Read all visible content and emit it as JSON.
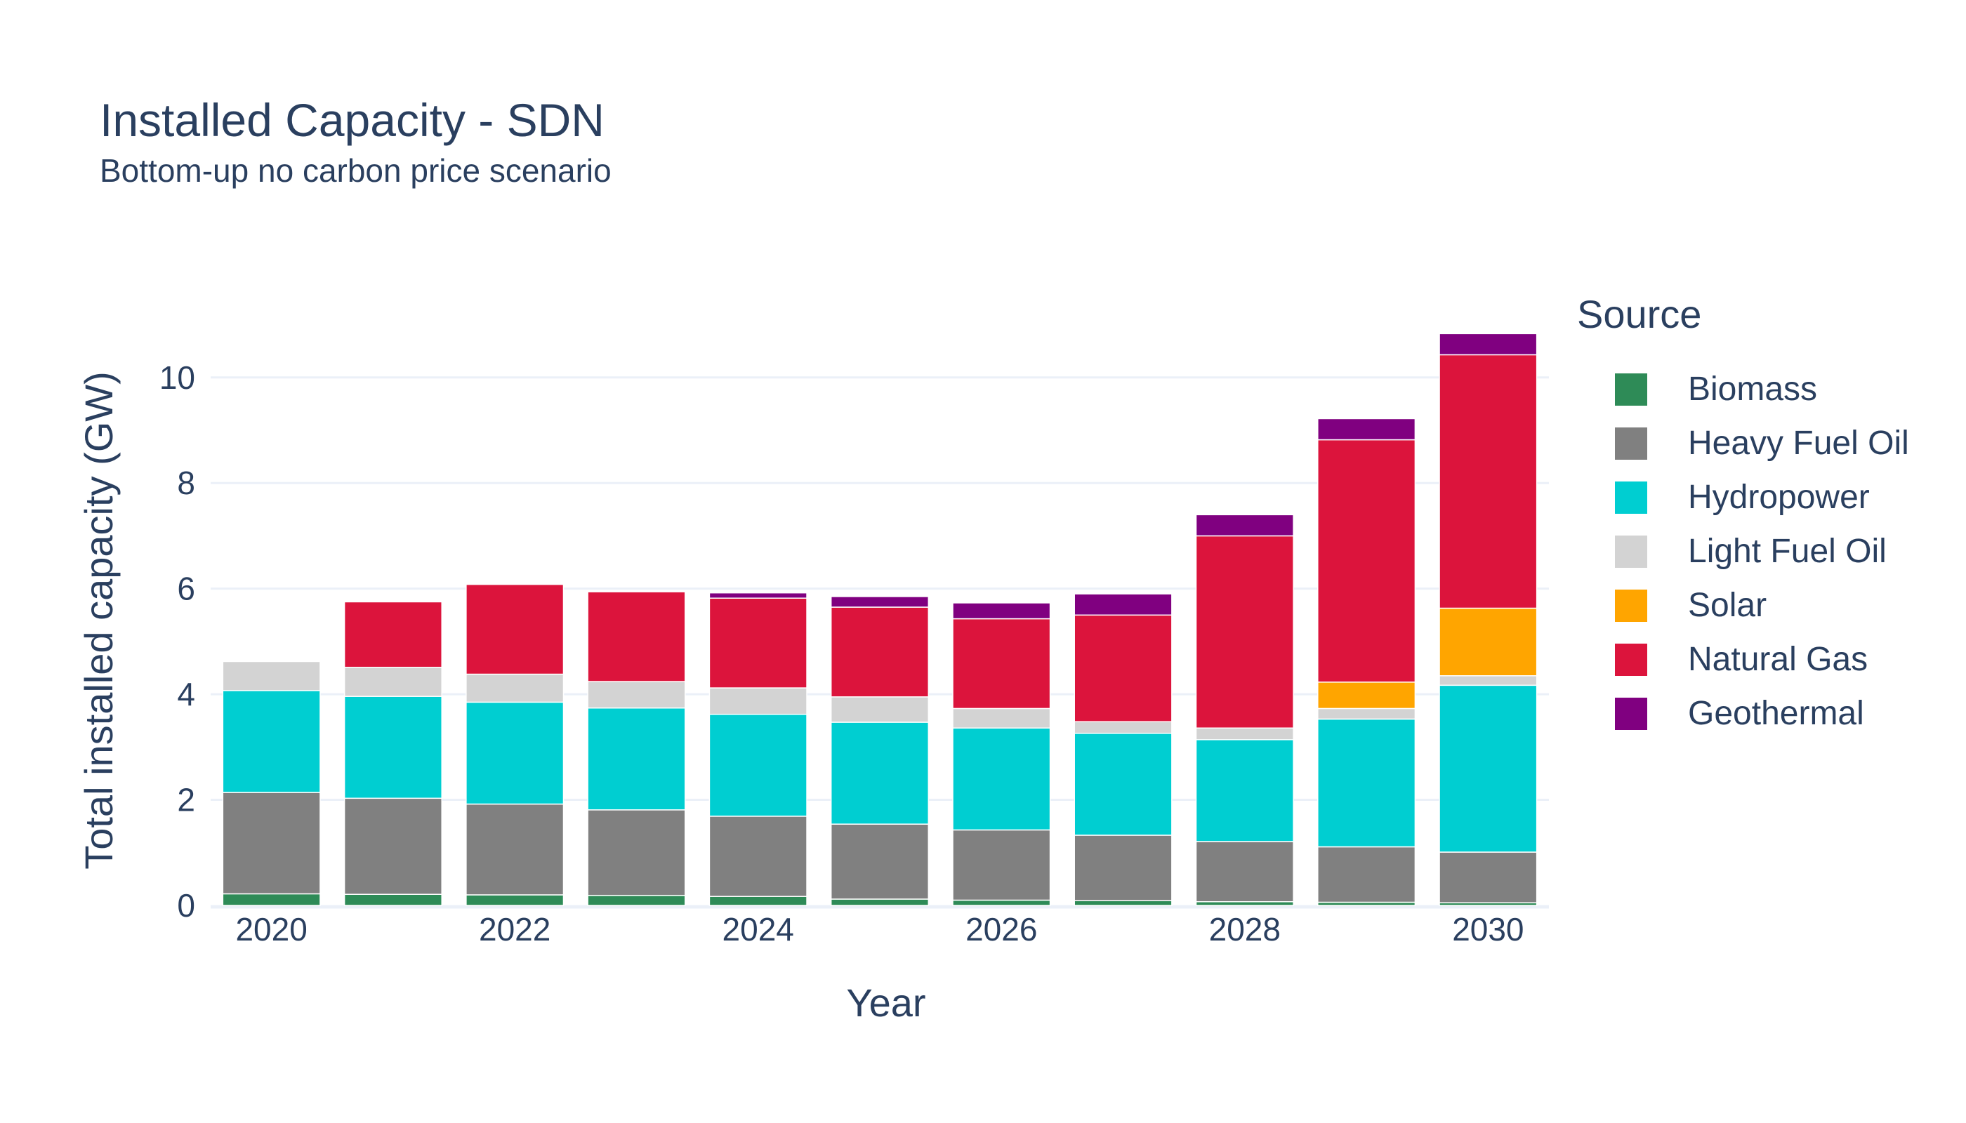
{
  "title": "Installed Capacity - SDN",
  "subtitle": "Bottom-up no carbon price scenario",
  "chart_data": {
    "type": "bar",
    "stacked": true,
    "xlabel": "Year",
    "ylabel": "Total installed capacity (GW)",
    "x": [
      2020,
      2021,
      2022,
      2023,
      2024,
      2025,
      2026,
      2027,
      2028,
      2029,
      2030
    ],
    "x_tick_labels": [
      "2020",
      "2022",
      "2024",
      "2026",
      "2028",
      "2030"
    ],
    "y_tick_labels": [
      "0",
      "2",
      "4",
      "6",
      "8",
      "10"
    ],
    "ylim": [
      0,
      11.3
    ],
    "grid": true,
    "legend_title": "Source",
    "legend_placement": "right",
    "series": [
      {
        "name": "Biomass",
        "color": "#2e8b57",
        "values": [
          0.22,
          0.21,
          0.2,
          0.19,
          0.17,
          0.12,
          0.1,
          0.09,
          0.07,
          0.06,
          0.05
        ]
      },
      {
        "name": "Heavy Fuel Oil",
        "color": "#808080",
        "values": [
          1.92,
          1.82,
          1.72,
          1.62,
          1.52,
          1.42,
          1.33,
          1.24,
          1.14,
          1.05,
          0.96
        ]
      },
      {
        "name": "Hydropower",
        "color": "#00ced1",
        "values": [
          1.93,
          1.93,
          1.93,
          1.93,
          1.93,
          1.93,
          1.93,
          1.93,
          1.93,
          2.42,
          3.16
        ]
      },
      {
        "name": "Light Fuel Oil",
        "color": "#d3d3d3",
        "values": [
          0.55,
          0.55,
          0.53,
          0.5,
          0.5,
          0.48,
          0.37,
          0.22,
          0.22,
          0.2,
          0.18
        ]
      },
      {
        "name": "Solar",
        "color": "#ffa500",
        "values": [
          0,
          0,
          0,
          0,
          0,
          0,
          0,
          0,
          0,
          0.5,
          1.28
        ]
      },
      {
        "name": "Natural Gas",
        "color": "#dc143c",
        "values": [
          0,
          1.24,
          1.7,
          1.7,
          1.7,
          1.7,
          1.7,
          2.02,
          3.64,
          4.59,
          4.8
        ]
      },
      {
        "name": "Geothermal",
        "color": "#800080",
        "values": [
          0,
          0,
          0,
          0,
          0.1,
          0.2,
          0.3,
          0.4,
          0.4,
          0.4,
          0.4
        ]
      }
    ]
  }
}
